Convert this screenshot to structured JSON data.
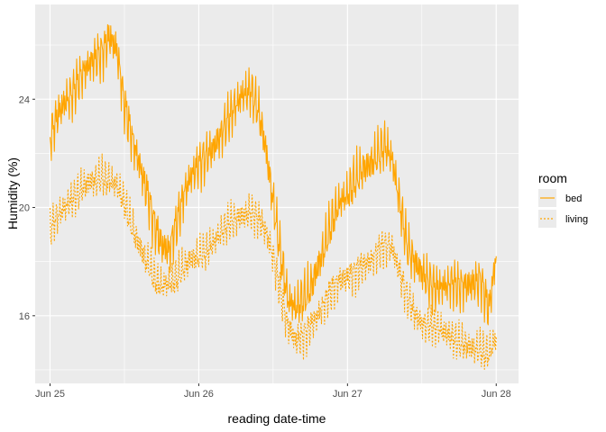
{
  "chart_data": {
    "type": "line",
    "title": "",
    "xlabel": "reading date-time",
    "ylabel": "Humidity (%)",
    "x_range": [
      -0.1,
      3.15
    ],
    "ylim": [
      13.5,
      27.5
    ],
    "x_ticks": [
      {
        "value": 0,
        "label": "Jun 25"
      },
      {
        "value": 1,
        "label": "Jun 26"
      },
      {
        "value": 2,
        "label": "Jun 27"
      },
      {
        "value": 3,
        "label": "Jun 28"
      }
    ],
    "x_minor_ticks": [
      0.5,
      1.5,
      2.5
    ],
    "y_ticks": [
      16,
      20,
      24
    ],
    "y_minor_ticks": [
      14,
      18,
      22,
      26
    ],
    "grid": true,
    "legend": {
      "title": "room",
      "position": "right",
      "entries": [
        {
          "label": "bed",
          "style": "solid"
        },
        {
          "label": "living",
          "style": "dotted"
        }
      ]
    },
    "colors": {
      "line": "#ffa500",
      "panel": "#ebebeb",
      "grid": "#ffffff"
    },
    "series": [
      {
        "name": "bed",
        "style": "solid",
        "x": [
          0,
          0.05,
          0.1,
          0.15,
          0.2,
          0.25,
          0.3,
          0.35,
          0.4,
          0.45,
          0.5,
          0.55,
          0.6,
          0.65,
          0.7,
          0.75,
          0.8,
          0.85,
          0.9,
          0.95,
          1.0,
          1.05,
          1.1,
          1.15,
          1.2,
          1.25,
          1.3,
          1.35,
          1.4,
          1.45,
          1.5,
          1.55,
          1.6,
          1.65,
          1.7,
          1.75,
          1.8,
          1.85,
          1.9,
          1.95,
          2.0,
          2.05,
          2.1,
          2.15,
          2.2,
          2.25,
          2.3,
          2.35,
          2.4,
          2.45,
          2.5,
          2.55,
          2.6,
          2.65,
          2.7,
          2.75,
          2.8,
          2.85,
          2.9,
          2.95,
          3.0
        ],
        "y": [
          22.6,
          23.4,
          23.9,
          24.2,
          24.8,
          25.2,
          25.5,
          25.7,
          26.3,
          25.8,
          23.8,
          22.6,
          21.6,
          20.6,
          19.4,
          18.6,
          18.4,
          19.4,
          20.5,
          21.2,
          21.6,
          21.9,
          22.2,
          22.7,
          23.3,
          23.8,
          24.2,
          24.3,
          23.6,
          22.2,
          20.2,
          18.3,
          16.6,
          16.3,
          16.6,
          17.0,
          17.8,
          18.6,
          19.6,
          20.2,
          20.5,
          21.0,
          21.4,
          21.6,
          21.9,
          22.3,
          21.8,
          20.2,
          18.6,
          18.0,
          17.6,
          17.2,
          17.0,
          17.1,
          17.2,
          17.1,
          17.1,
          17.2,
          17.3,
          16.2,
          18.2
        ]
      },
      {
        "name": "living",
        "style": "dotted",
        "x": [
          0,
          0.05,
          0.1,
          0.15,
          0.2,
          0.25,
          0.3,
          0.35,
          0.4,
          0.45,
          0.5,
          0.55,
          0.6,
          0.65,
          0.7,
          0.75,
          0.8,
          0.85,
          0.9,
          0.95,
          1.0,
          1.05,
          1.1,
          1.15,
          1.2,
          1.25,
          1.3,
          1.35,
          1.4,
          1.45,
          1.5,
          1.55,
          1.6,
          1.65,
          1.7,
          1.75,
          1.8,
          1.85,
          1.9,
          1.95,
          2.0,
          2.05,
          2.1,
          2.15,
          2.2,
          2.25,
          2.3,
          2.35,
          2.4,
          2.45,
          2.5,
          2.55,
          2.6,
          2.65,
          2.7,
          2.75,
          2.8,
          2.85,
          2.9,
          2.95,
          3.0
        ],
        "y": [
          19.2,
          19.7,
          20.0,
          20.3,
          20.6,
          20.9,
          21.0,
          21.1,
          21.0,
          20.8,
          20.2,
          19.3,
          18.6,
          18.0,
          17.4,
          17.1,
          17.2,
          17.4,
          17.8,
          18.1,
          18.2,
          18.4,
          18.7,
          19.1,
          19.4,
          19.6,
          19.7,
          19.8,
          19.6,
          19.1,
          18.2,
          16.8,
          15.6,
          15.1,
          15.2,
          15.6,
          16.0,
          16.5,
          17.0,
          17.3,
          17.4,
          17.6,
          17.8,
          18.0,
          18.3,
          18.6,
          18.5,
          17.6,
          16.7,
          16.1,
          15.7,
          15.6,
          15.6,
          15.4,
          15.2,
          15.0,
          14.9,
          14.8,
          14.7,
          14.6,
          15.2
        ]
      }
    ]
  }
}
